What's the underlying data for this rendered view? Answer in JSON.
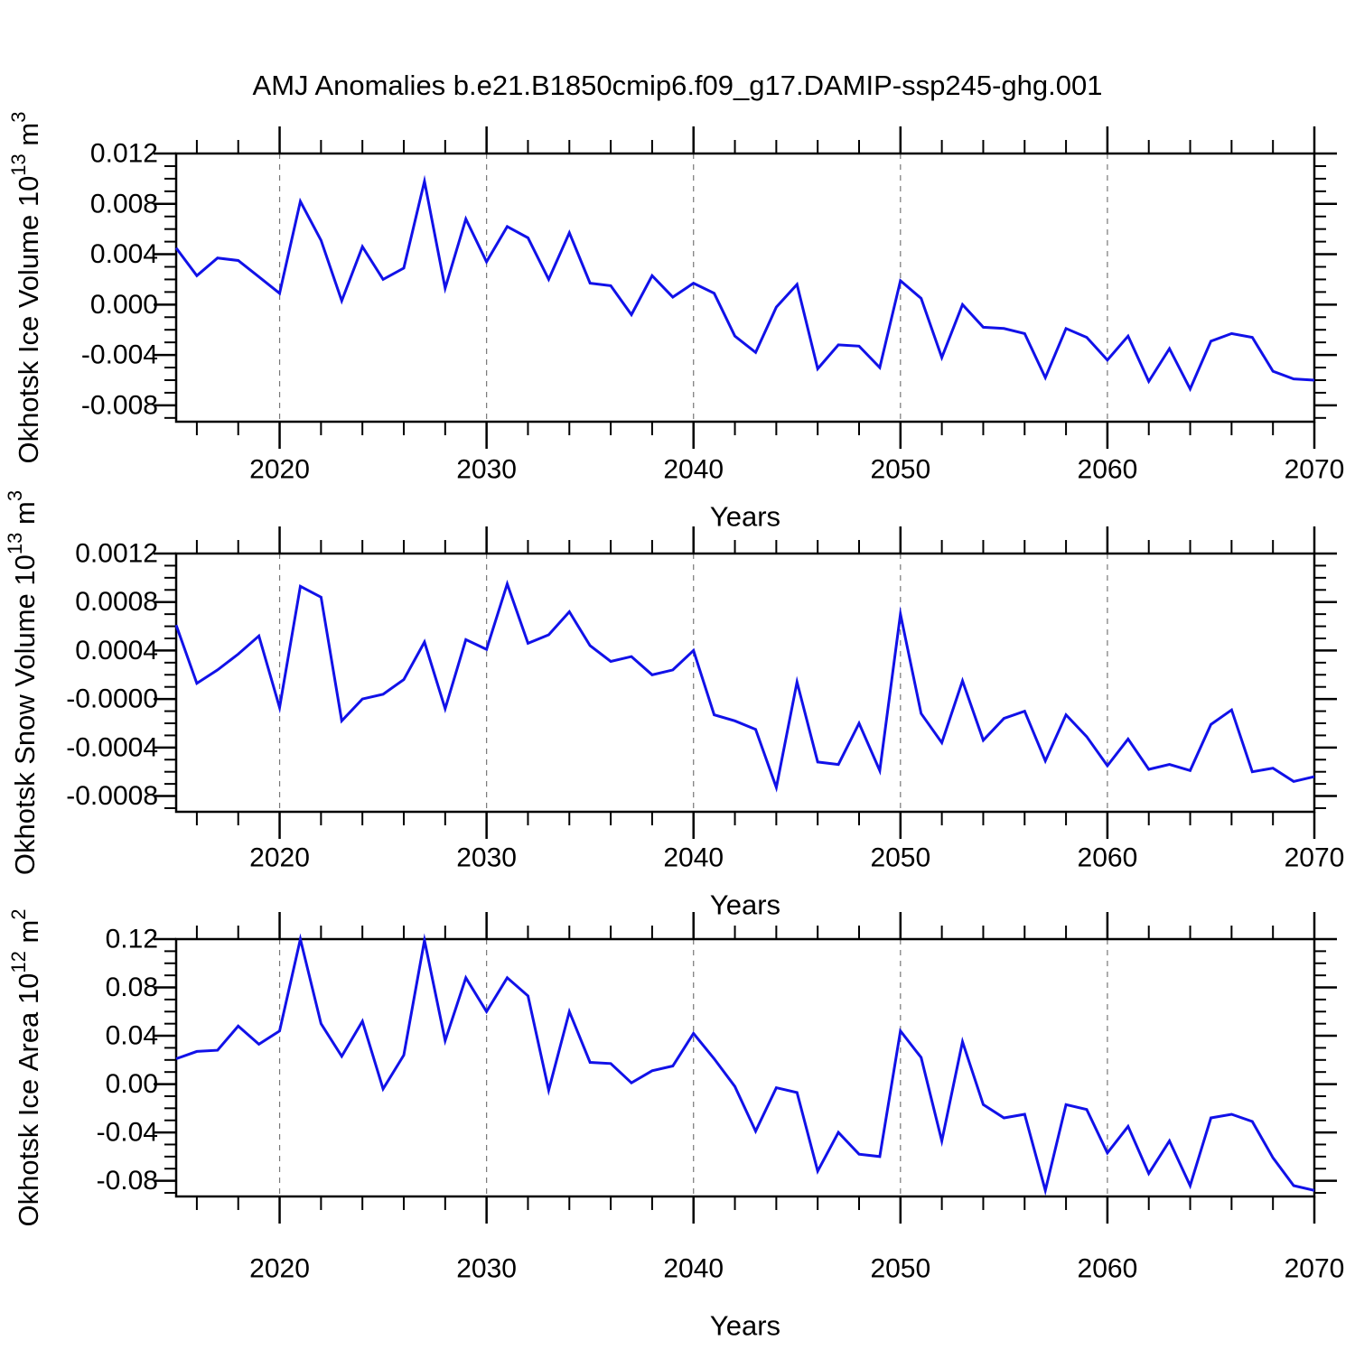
{
  "title": "AMJ Anomalies b.e21.B1850cmip6.f09_g17.DAMIP-ssp245-ghg.001",
  "colors": {
    "line": "#1111e8",
    "grid": "#777777",
    "axis": "#000000",
    "background": "#ffffff",
    "text": "#000000"
  },
  "x_axis": {
    "label": "Years",
    "range": [
      2015,
      2070
    ],
    "major_ticks": [
      2020,
      2030,
      2040,
      2050,
      2060,
      2070
    ],
    "minor_step_years": 2,
    "gridline_years": [
      2020,
      2030,
      2040,
      2050,
      2060
    ]
  },
  "years": [
    2015,
    2016,
    2017,
    2018,
    2019,
    2020,
    2021,
    2022,
    2023,
    2024,
    2025,
    2026,
    2027,
    2028,
    2029,
    2030,
    2031,
    2032,
    2033,
    2034,
    2035,
    2036,
    2037,
    2038,
    2039,
    2040,
    2041,
    2042,
    2043,
    2044,
    2045,
    2046,
    2047,
    2048,
    2049,
    2050,
    2051,
    2052,
    2053,
    2054,
    2055,
    2056,
    2057,
    2058,
    2059,
    2060,
    2061,
    2062,
    2063,
    2064,
    2065,
    2066,
    2067,
    2068,
    2069,
    2070
  ],
  "chart_data": [
    {
      "type": "line",
      "title": "AMJ Anomalies b.e21.B1850cmip6.f09_g17.DAMIP-ssp245-ghg.001",
      "xlabel": "Years",
      "ylabel": "Okhotsk Ice Volume 10^13 m^3",
      "ylabel_parts": [
        {
          "t": "Okhotsk Ice Volume 10"
        },
        {
          "sup": "13"
        },
        {
          "t": " m"
        },
        {
          "sup": "3"
        }
      ],
      "ylim": [
        -0.0093,
        0.012
      ],
      "yticks": [
        0.012,
        0.008,
        0.004,
        0.0,
        -0.004,
        -0.008
      ],
      "ytick_labels": [
        "0.012",
        "0.008",
        "0.004",
        "0.000",
        "-0.004",
        "-0.008"
      ],
      "yminor_step": 0.001,
      "grid": true,
      "legend": "none",
      "x": [
        2015,
        2016,
        2017,
        2018,
        2019,
        2020,
        2021,
        2022,
        2023,
        2024,
        2025,
        2026,
        2027,
        2028,
        2029,
        2030,
        2031,
        2032,
        2033,
        2034,
        2035,
        2036,
        2037,
        2038,
        2039,
        2040,
        2041,
        2042,
        2043,
        2044,
        2045,
        2046,
        2047,
        2048,
        2049,
        2050,
        2051,
        2052,
        2053,
        2054,
        2055,
        2056,
        2057,
        2058,
        2059,
        2060,
        2061,
        2062,
        2063,
        2064,
        2065,
        2066,
        2067,
        2068,
        2069,
        2070
      ],
      "values": [
        0.0045,
        0.0023,
        0.0037,
        0.0035,
        0.0022,
        0.0009,
        0.0082,
        0.0051,
        0.0003,
        0.0046,
        0.002,
        0.0029,
        0.0098,
        0.0013,
        0.0068,
        0.0034,
        0.0062,
        0.0053,
        0.002,
        0.0057,
        0.0017,
        0.0015,
        -0.0008,
        0.0023,
        0.0006,
        0.0017,
        0.0009,
        -0.0025,
        -0.0038,
        -0.0002,
        0.0016,
        -0.0051,
        -0.0032,
        -0.0033,
        -0.005,
        0.0019,
        0.0005,
        -0.0042,
        0.0,
        -0.0018,
        -0.0019,
        -0.0023,
        -0.0058,
        -0.0019,
        -0.0026,
        -0.0044,
        -0.0025,
        -0.0061,
        -0.0035,
        -0.0067,
        -0.0029,
        -0.0023,
        -0.0026,
        -0.0053,
        -0.0059,
        -0.006
      ]
    },
    {
      "type": "line",
      "title": "",
      "xlabel": "Years",
      "ylabel": "Okhotsk Snow Volume 10^13 m^3",
      "ylabel_parts": [
        {
          "t": "Okhotsk Snow Volume 10"
        },
        {
          "sup": "13"
        },
        {
          "t": " m"
        },
        {
          "sup": "3"
        }
      ],
      "ylim": [
        -0.00093,
        0.0012
      ],
      "yticks": [
        0.0012,
        0.0008,
        0.0004,
        0.0,
        -0.0004,
        -0.0008
      ],
      "ytick_labels": [
        "0.0012",
        "0.0008",
        "0.0004",
        "-0.0000",
        "-0.0004",
        "-0.0008"
      ],
      "yminor_step": 0.0001,
      "grid": true,
      "legend": "none",
      "x": [
        2015,
        2016,
        2017,
        2018,
        2019,
        2020,
        2021,
        2022,
        2023,
        2024,
        2025,
        2026,
        2027,
        2028,
        2029,
        2030,
        2031,
        2032,
        2033,
        2034,
        2035,
        2036,
        2037,
        2038,
        2039,
        2040,
        2041,
        2042,
        2043,
        2044,
        2045,
        2046,
        2047,
        2048,
        2049,
        2050,
        2051,
        2052,
        2053,
        2054,
        2055,
        2056,
        2057,
        2058,
        2059,
        2060,
        2061,
        2062,
        2063,
        2064,
        2065,
        2066,
        2067,
        2068,
        2069,
        2070
      ],
      "values": [
        0.00061,
        0.00013,
        0.00024,
        0.00037,
        0.00052,
        -7e-05,
        0.00093,
        0.00084,
        -0.00018,
        0.0,
        4e-05,
        0.00016,
        0.00047,
        -8e-05,
        0.00049,
        0.00041,
        0.00095,
        0.00046,
        0.00053,
        0.00072,
        0.00044,
        0.00031,
        0.00035,
        0.0002,
        0.00024,
        0.0004,
        -0.00013,
        -0.00018,
        -0.00025,
        -0.00073,
        0.00014,
        -0.00052,
        -0.00054,
        -0.0002,
        -0.00059,
        0.0007,
        -0.00012,
        -0.00036,
        0.00015,
        -0.00034,
        -0.00016,
        -0.0001,
        -0.00051,
        -0.00013,
        -0.00031,
        -0.00055,
        -0.00033,
        -0.00058,
        -0.00054,
        -0.00059,
        -0.00021,
        -9e-05,
        -0.0006,
        -0.00057,
        -0.00068,
        -0.00064
      ]
    },
    {
      "type": "line",
      "title": "",
      "xlabel": "Years",
      "ylabel": "Okhotsk Ice Area 10^12 m^2",
      "ylabel_parts": [
        {
          "t": "Okhotsk Ice Area 10"
        },
        {
          "sup": "12"
        },
        {
          "t": " m"
        },
        {
          "sup": "2"
        }
      ],
      "ylim": [
        -0.093,
        0.12
      ],
      "yticks": [
        0.12,
        0.08,
        0.04,
        0.0,
        -0.04,
        -0.08
      ],
      "ytick_labels": [
        "0.12",
        "0.08",
        "0.04",
        "0.00",
        "-0.04",
        "-0.08"
      ],
      "yminor_step": 0.01,
      "grid": true,
      "legend": "none",
      "x": [
        2015,
        2016,
        2017,
        2018,
        2019,
        2020,
        2021,
        2022,
        2023,
        2024,
        2025,
        2026,
        2027,
        2028,
        2029,
        2030,
        2031,
        2032,
        2033,
        2034,
        2035,
        2036,
        2037,
        2038,
        2039,
        2040,
        2041,
        2042,
        2043,
        2044,
        2045,
        2046,
        2047,
        2048,
        2049,
        2050,
        2051,
        2052,
        2053,
        2054,
        2055,
        2056,
        2057,
        2058,
        2059,
        2060,
        2061,
        2062,
        2063,
        2064,
        2065,
        2066,
        2067,
        2068,
        2069,
        2070
      ],
      "values": [
        0.021,
        0.027,
        0.028,
        0.048,
        0.033,
        0.044,
        0.12,
        0.05,
        0.023,
        0.052,
        -0.004,
        0.024,
        0.119,
        0.036,
        0.088,
        0.06,
        0.088,
        0.073,
        -0.005,
        0.06,
        0.018,
        0.017,
        0.001,
        0.011,
        0.015,
        0.042,
        0.021,
        -0.002,
        -0.039,
        -0.003,
        -0.007,
        -0.072,
        -0.04,
        -0.058,
        -0.06,
        0.044,
        0.022,
        -0.047,
        0.035,
        -0.017,
        -0.028,
        -0.025,
        -0.088,
        -0.017,
        -0.021,
        -0.057,
        -0.035,
        -0.074,
        -0.047,
        -0.084,
        -0.028,
        -0.025,
        -0.031,
        -0.061,
        -0.084,
        -0.088
      ]
    }
  ]
}
